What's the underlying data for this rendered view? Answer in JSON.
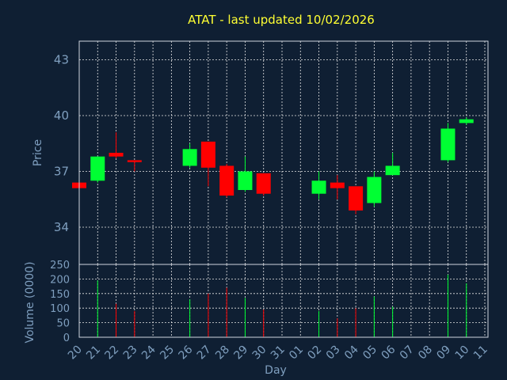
{
  "chart_data": {
    "type": "candlestick",
    "title": "ATAT - last updated 10/02/2026",
    "xlabel": "Day",
    "price_panel": {
      "ylabel": "Price",
      "ylim": [
        32.0,
        44.0
      ],
      "yticks": [
        34,
        37,
        40,
        43
      ],
      "grid": true
    },
    "volume_panel": {
      "ylabel": "Volume (0000)",
      "ylim": [
        0,
        250
      ],
      "yticks": [
        0,
        50,
        100,
        150,
        200,
        250
      ],
      "grid": true
    },
    "x_tick_labels": [
      "20",
      "21",
      "22",
      "23",
      "24",
      "25",
      "26",
      "27",
      "28",
      "29",
      "30",
      "31",
      "01",
      "02",
      "03",
      "04",
      "05",
      "06",
      "07",
      "08",
      "09",
      "10",
      "11"
    ],
    "up_color": "#00ff33",
    "down_color": "#ff0000",
    "candles": [
      {
        "day": "20",
        "open": 36.4,
        "high": 36.4,
        "low": 36.1,
        "close": 36.1
      },
      {
        "day": "21",
        "open": 36.5,
        "high": 37.8,
        "low": 36.4,
        "close": 37.8
      },
      {
        "day": "22",
        "open": 38.0,
        "high": 39.1,
        "low": 37.7,
        "close": 37.8
      },
      {
        "day": "23",
        "open": 37.6,
        "high": 37.6,
        "low": 37.0,
        "close": 37.5
      },
      {
        "day": "26",
        "open": 37.3,
        "high": 38.5,
        "low": 37.2,
        "close": 38.2
      },
      {
        "day": "27",
        "open": 38.6,
        "high": 38.6,
        "low": 36.2,
        "close": 37.2
      },
      {
        "day": "28",
        "open": 37.3,
        "high": 37.4,
        "low": 35.6,
        "close": 35.7
      },
      {
        "day": "29",
        "open": 36.0,
        "high": 37.8,
        "low": 35.9,
        "close": 37.0
      },
      {
        "day": "30",
        "open": 36.9,
        "high": 36.9,
        "low": 35.7,
        "close": 35.8
      },
      {
        "day": "02",
        "open": 35.8,
        "high": 37.0,
        "low": 35.5,
        "close": 36.5
      },
      {
        "day": "03",
        "open": 36.4,
        "high": 36.8,
        "low": 35.5,
        "close": 36.1
      },
      {
        "day": "04",
        "open": 36.2,
        "high": 36.2,
        "low": 34.7,
        "close": 34.9
      },
      {
        "day": "05",
        "open": 35.3,
        "high": 37.0,
        "low": 35.1,
        "close": 36.7
      },
      {
        "day": "06",
        "open": 36.8,
        "high": 38.0,
        "low": 36.8,
        "close": 37.3
      },
      {
        "day": "09",
        "open": 37.6,
        "high": 39.6,
        "low": 37.5,
        "close": 39.3
      },
      {
        "day": "10",
        "open": 39.6,
        "high": 39.9,
        "low": 39.5,
        "close": 39.8
      }
    ],
    "volume": [
      {
        "day": "21",
        "value": 195,
        "color": "#00ff33"
      },
      {
        "day": "22",
        "value": 115,
        "color": "#ff0000"
      },
      {
        "day": "23",
        "value": 90,
        "color": "#ff0000"
      },
      {
        "day": "26",
        "value": 130,
        "color": "#00ff33"
      },
      {
        "day": "27",
        "value": 150,
        "color": "#ff0000"
      },
      {
        "day": "28",
        "value": 170,
        "color": "#ff0000"
      },
      {
        "day": "29",
        "value": 135,
        "color": "#00ff33"
      },
      {
        "day": "30",
        "value": 95,
        "color": "#ff0000"
      },
      {
        "day": "02",
        "value": 90,
        "color": "#00ff33"
      },
      {
        "day": "03",
        "value": 65,
        "color": "#ff0000"
      },
      {
        "day": "04",
        "value": 100,
        "color": "#ff0000"
      },
      {
        "day": "05",
        "value": 140,
        "color": "#00ff33"
      },
      {
        "day": "06",
        "value": 105,
        "color": "#00ff33"
      },
      {
        "day": "09",
        "value": 215,
        "color": "#00ff33"
      },
      {
        "day": "10",
        "value": 185,
        "color": "#00ff33"
      }
    ],
    "colors": {
      "background": "#0f1f33",
      "title": "#ffff33",
      "axis_text": "#7f9fbf",
      "frame": "#cfd6df",
      "grid": "#e6e6e6"
    }
  }
}
